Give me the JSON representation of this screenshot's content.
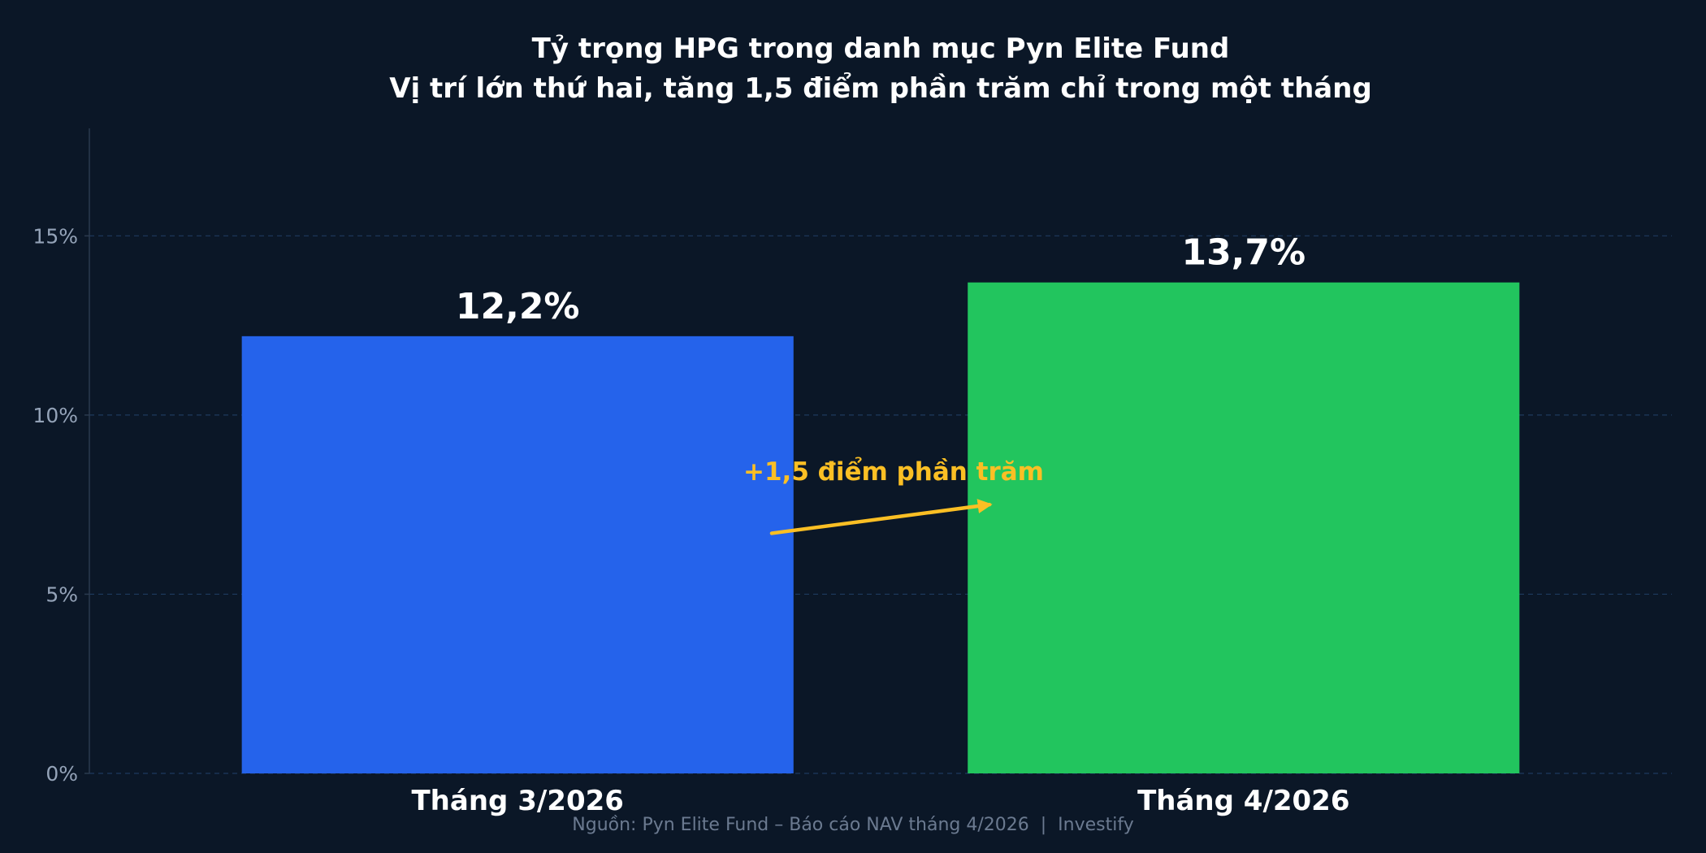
{
  "chart_data": {
    "type": "bar",
    "title": "Tỷ trọng HPG trong danh mục Pyn Elite Fund",
    "subtitle": "Vị trí lớn thứ hai, tăng 1,5 điểm phần trăm chỉ trong một tháng",
    "categories": [
      "Tháng 3/2026",
      "Tháng 4/2026"
    ],
    "values": [
      12.2,
      13.7
    ],
    "unit": "%",
    "data_labels": [
      "12,2%",
      "13,7%"
    ],
    "bar_colors": [
      "#2563eb",
      "#22c55e"
    ],
    "ylim": [
      0,
      18
    ],
    "yticks": [
      0,
      5,
      10,
      15
    ],
    "ytick_labels": [
      "0%",
      "5%",
      "10%",
      "15%"
    ],
    "grid": true,
    "annotation": {
      "text": "+1,5 điểm phần trăm",
      "color": "#fbbf24",
      "arrow_from": [
        0.35,
        6.7
      ],
      "arrow_to": [
        0.65,
        7.5
      ]
    },
    "source": "Nguồn: Pyn Elite Fund – Báo cáo NAV tháng 4/2026  |  Investify"
  },
  "colors": {
    "background": "#0b1727",
    "grid": "#1e3a5f",
    "axis": "#2b3a4f",
    "tick_text": "#94a3b8",
    "label_text": "#ffffff",
    "source_text": "#6b7a90"
  }
}
